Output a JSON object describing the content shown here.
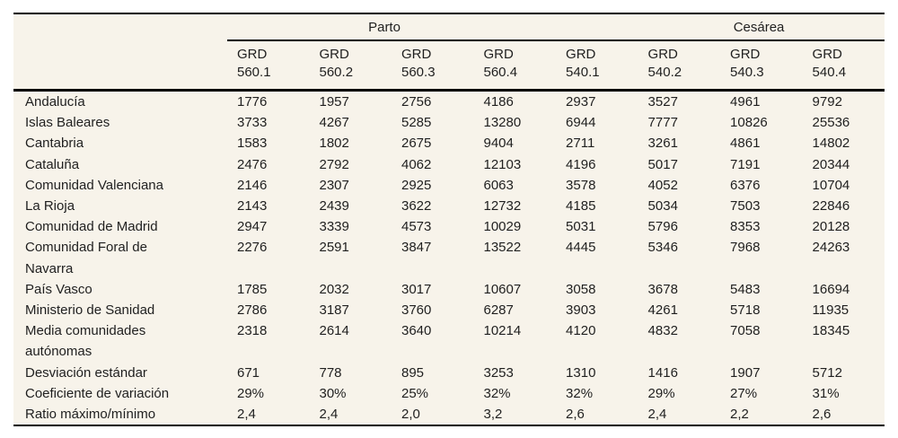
{
  "colors": {
    "page_background": "#ffffff",
    "table_background": "#f7f3ea",
    "rule": "#000000",
    "text": "#1f1f1f"
  },
  "table": {
    "groups": [
      {
        "label": "Parto"
      },
      {
        "label": "Cesárea"
      }
    ],
    "columns": [
      {
        "line1": "GRD",
        "line2": "560.1"
      },
      {
        "line1": "GRD",
        "line2": "560.2"
      },
      {
        "line1": "GRD",
        "line2": "560.3"
      },
      {
        "line1": "GRD",
        "line2": "560.4"
      },
      {
        "line1": "GRD",
        "line2": "540.1"
      },
      {
        "line1": "GRD",
        "line2": "540.2"
      },
      {
        "line1": "GRD",
        "line2": "540.3"
      },
      {
        "line1": "GRD",
        "line2": "540.4"
      }
    ],
    "rows": [
      {
        "label": "Andalucía",
        "values": [
          "1776",
          "1957",
          "2756",
          "4186",
          "2937",
          "3527",
          "4961",
          "9792"
        ]
      },
      {
        "label": "Islas Baleares",
        "values": [
          "3733",
          "4267",
          "5285",
          "13280",
          "6944",
          "7777",
          "10826",
          "25536"
        ]
      },
      {
        "label": "Cantabria",
        "values": [
          "1583",
          "1802",
          "2675",
          "9404",
          "2711",
          "3261",
          "4861",
          "14802"
        ]
      },
      {
        "label": "Cataluña",
        "values": [
          "2476",
          "2792",
          "4062",
          "12103",
          "4196",
          "5017",
          "7191",
          "20344"
        ]
      },
      {
        "label": "Comunidad Valenciana",
        "values": [
          "2146",
          "2307",
          "2925",
          "6063",
          "3578",
          "4052",
          "6376",
          "10704"
        ]
      },
      {
        "label": "La Rioja",
        "values": [
          "2143",
          "2439",
          "3622",
          "12732",
          "4185",
          "5034",
          "7503",
          "22846"
        ]
      },
      {
        "label": "Comunidad de Madrid",
        "values": [
          "2947",
          "3339",
          "4573",
          "10029",
          "5031",
          "5796",
          "8353",
          "20128"
        ]
      },
      {
        "label": "Comunidad Foral de\nNavarra",
        "values": [
          "2276",
          "2591",
          "3847",
          "13522",
          "4445",
          "5346",
          "7968",
          "24263"
        ]
      },
      {
        "label": "País Vasco",
        "values": [
          "1785",
          "2032",
          "3017",
          "10607",
          "3058",
          "3678",
          "5483",
          "16694"
        ]
      },
      {
        "label": "Ministerio de Sanidad",
        "values": [
          "2786",
          "3187",
          "3760",
          "6287",
          "3903",
          "4261",
          "5718",
          "11935"
        ]
      },
      {
        "label": "Media comunidades\nautónomas",
        "values": [
          "2318",
          "2614",
          "3640",
          "10214",
          "4120",
          "4832",
          "7058",
          "18345"
        ]
      },
      {
        "label": "Desviación estándar",
        "values": [
          "671",
          "778",
          "895",
          "3253",
          "1310",
          "1416",
          "1907",
          "5712"
        ]
      },
      {
        "label": "Coeficiente de variación",
        "values": [
          "29%",
          "30%",
          "25%",
          "32%",
          "32%",
          "29%",
          "27%",
          "31%"
        ]
      },
      {
        "label": "Ratio máximo/mínimo",
        "values": [
          "2,4",
          "2,4",
          "2,0",
          "3,2",
          "2,6",
          "2,4",
          "2,2",
          "2,6"
        ]
      }
    ]
  }
}
